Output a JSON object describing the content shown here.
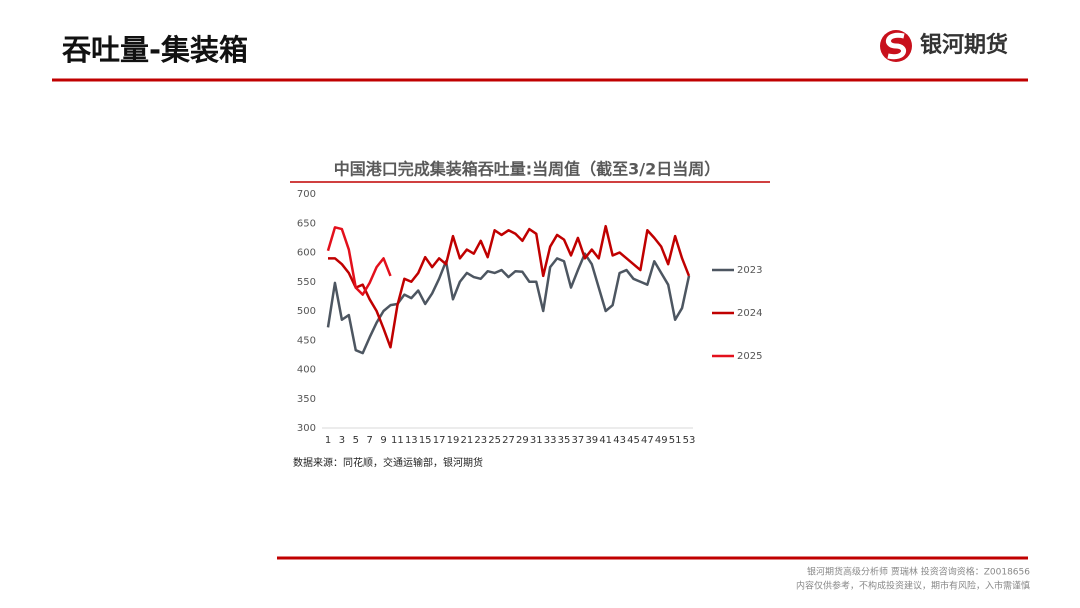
{
  "header": {
    "title": "吞吐量-集装箱",
    "logo": "银河期货"
  },
  "chart_data": {
    "type": "line",
    "title": "中国港口完成集装箱吞吐量:当周值（截至3/2日当周）",
    "x": [
      1,
      2,
      3,
      4,
      5,
      6,
      7,
      8,
      9,
      10,
      11,
      12,
      13,
      14,
      15,
      16,
      17,
      18,
      19,
      20,
      21,
      22,
      23,
      24,
      25,
      26,
      27,
      28,
      29,
      30,
      31,
      32,
      33,
      34,
      35,
      36,
      37,
      38,
      39,
      40,
      41,
      42,
      43,
      44,
      45,
      46,
      47,
      48,
      49,
      50,
      51,
      52,
      53
    ],
    "xlim": [
      1,
      53
    ],
    "xticks": [
      1,
      3,
      5,
      7,
      9,
      11,
      13,
      15,
      17,
      19,
      21,
      23,
      25,
      27,
      29,
      31,
      33,
      35,
      37,
      39,
      41,
      43,
      45,
      47,
      49,
      51,
      53
    ],
    "ylim": [
      300,
      700
    ],
    "yticks": [
      300,
      350,
      400,
      450,
      500,
      550,
      600,
      650,
      700
    ],
    "grid": false,
    "legend": "right",
    "series": [
      {
        "name": "2023",
        "color": "#4d5661",
        "values": [
          472,
          548,
          485,
          493,
          433,
          428,
          455,
          480,
          500,
          510,
          512,
          528,
          522,
          535,
          512,
          530,
          555,
          585,
          520,
          550,
          565,
          558,
          555,
          568,
          565,
          570,
          558,
          568,
          567,
          550,
          550,
          500,
          575,
          590,
          585,
          540,
          570,
          598,
          580,
          540,
          500,
          510,
          565,
          570,
          555,
          550,
          545,
          585,
          565,
          545,
          485,
          505,
          560
        ]
      },
      {
        "name": "2024",
        "color": "#c00000",
        "values": [
          590,
          590,
          580,
          565,
          540,
          545,
          520,
          500,
          470,
          438,
          510,
          555,
          550,
          565,
          592,
          575,
          590,
          580,
          628,
          590,
          605,
          598,
          620,
          592,
          638,
          630,
          638,
          632,
          620,
          640,
          632,
          560,
          610,
          630,
          622,
          595,
          625,
          590,
          605,
          590,
          645,
          595,
          600,
          590,
          580,
          570,
          638,
          625,
          610,
          580,
          628,
          590,
          560
        ]
      },
      {
        "name": "2025",
        "color": "#e3101c",
        "values": [
          603,
          643,
          640,
          605,
          540,
          528,
          548,
          575,
          590,
          560,
          null,
          null,
          null,
          null,
          null,
          null,
          null,
          null,
          null,
          null,
          null,
          null,
          null,
          null,
          null,
          null,
          null,
          null,
          null,
          null,
          null,
          null,
          null,
          null,
          null,
          null,
          null,
          null,
          null,
          null,
          null,
          null,
          null,
          null,
          null,
          null,
          null,
          null,
          null,
          null,
          null,
          null,
          null
        ]
      }
    ],
    "source": "数据来源：同花顺，交通运输部，银河期货"
  },
  "footer": {
    "line1": "银河期货高级分析师 贾瑞林 投资咨询资格：Z0018656",
    "line2": "内容仅供参考，不构成投资建议，期市有风险，入市需谨慎"
  }
}
